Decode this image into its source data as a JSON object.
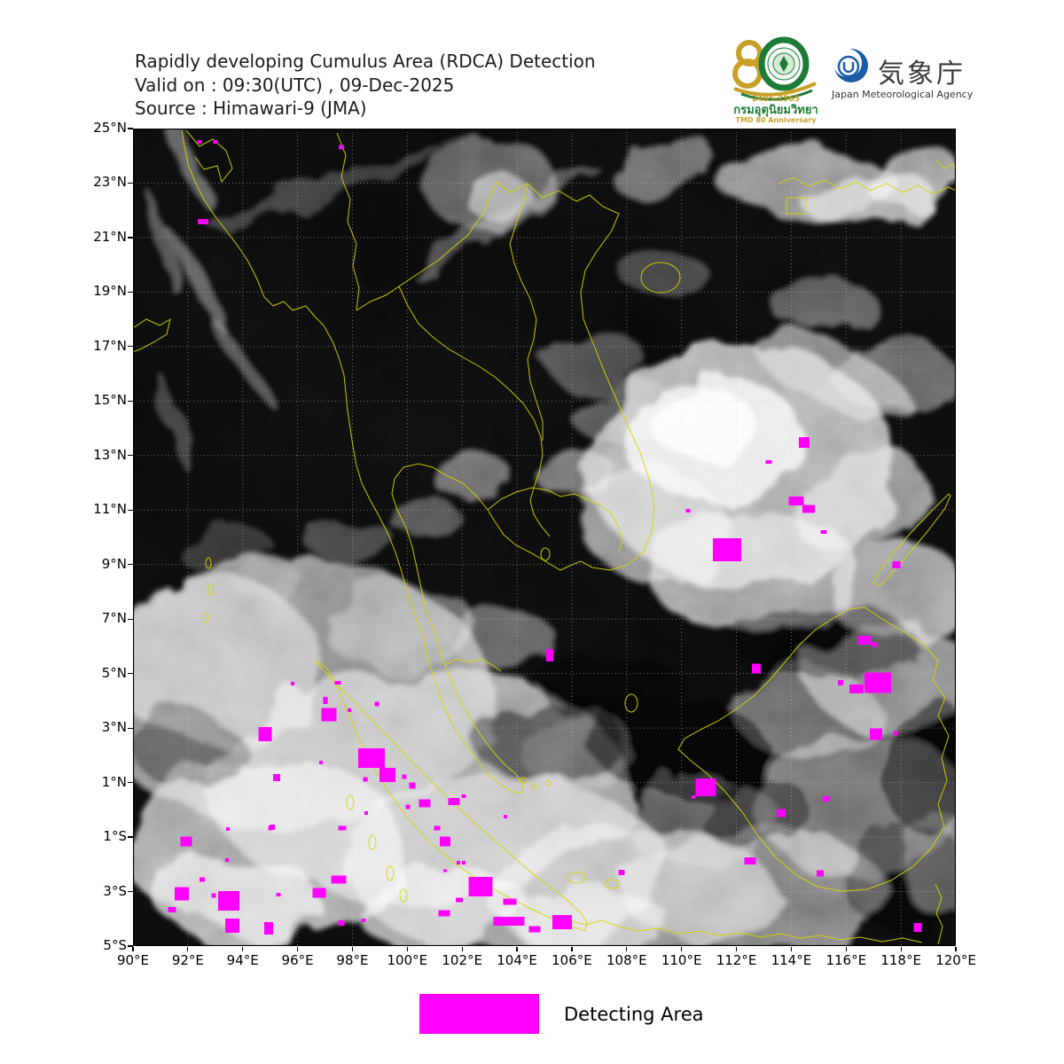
{
  "header": {
    "line1": "Rapidly developing Cumulus Area (RDCA) Detection",
    "line2": "Valid on : 09:30(UTC) , 09-Dec-2025",
    "line3": "Source : Himawari-9 (JMA)"
  },
  "logos": {
    "tmd": {
      "number": "80",
      "years": "2485-2565",
      "thai_name": "กรมอุตุนิยมวิทยา",
      "anniversary": "TMD 80 Anniversary"
    },
    "jma": {
      "name_ja": "気象庁",
      "name_en": "Japan Meteorological Agency"
    }
  },
  "axes": {
    "lon_range": [
      90,
      120
    ],
    "lat_range": [
      -5,
      25
    ],
    "grid_step_deg": 2,
    "lon_tick_values": [
      90,
      92,
      94,
      96,
      98,
      100,
      102,
      104,
      106,
      108,
      110,
      112,
      114,
      116,
      118,
      120
    ],
    "lon_tick_labels": [
      "90°E",
      "92°E",
      "94°E",
      "96°E",
      "98°E",
      "100°E",
      "102°E",
      "104°E",
      "106°E",
      "108°E",
      "110°E",
      "112°E",
      "114°E",
      "116°E",
      "118°E",
      "120°E"
    ],
    "lat_tick_values": [
      25,
      23,
      21,
      19,
      17,
      15,
      13,
      11,
      9,
      7,
      5,
      3,
      1,
      -1,
      -3,
      -5
    ],
    "lat_tick_labels": [
      "25°N",
      "23°N",
      "21°N",
      "19°N",
      "17°N",
      "15°N",
      "13°N",
      "11°N",
      "9°N",
      "7°N",
      "5°N",
      "3°N",
      "1°N",
      "1°S",
      "3°S",
      "5°S"
    ]
  },
  "legend": {
    "label": "Detecting Area",
    "color": "#FF00FF"
  },
  "map": {
    "detections_lon_lat_w_h": [
      [
        92.42,
        24.51,
        5,
        4
      ],
      [
        93.01,
        24.51,
        5,
        4
      ],
      [
        97.6,
        24.32,
        6,
        5
      ],
      [
        92.55,
        21.58,
        12,
        6
      ],
      [
        114.47,
        13.48,
        12,
        12
      ],
      [
        113.18,
        12.76,
        7,
        4
      ],
      [
        114.18,
        11.33,
        17,
        10
      ],
      [
        114.64,
        11.04,
        14,
        9
      ],
      [
        115.19,
        10.19,
        7,
        4
      ],
      [
        111.66,
        9.54,
        32,
        26
      ],
      [
        110.24,
        10.97,
        5,
        4
      ],
      [
        117.84,
        8.99,
        9,
        8
      ],
      [
        116.67,
        6.22,
        15,
        10
      ],
      [
        117.03,
        6.06,
        6,
        5
      ],
      [
        115.8,
        4.66,
        6,
        6
      ],
      [
        117.16,
        4.66,
        30,
        23
      ],
      [
        116.38,
        4.43,
        16,
        10
      ],
      [
        117.09,
        2.77,
        14,
        13
      ],
      [
        117.8,
        2.81,
        5,
        5
      ],
      [
        105.2,
        5.67,
        8,
        14
      ],
      [
        112.73,
        5.18,
        10,
        11
      ],
      [
        95.82,
        4.63,
        4,
        4
      ],
      [
        97.47,
        4.66,
        7,
        4
      ],
      [
        97.02,
        4.01,
        5,
        8
      ],
      [
        97.15,
        3.49,
        17,
        15
      ],
      [
        97.89,
        3.65,
        4,
        4
      ],
      [
        98.89,
        3.88,
        5,
        5
      ],
      [
        94.82,
        2.77,
        15,
        16
      ],
      [
        95.24,
        1.18,
        8,
        8
      ],
      [
        96.85,
        1.73,
        4,
        4
      ],
      [
        98.7,
        1.9,
        30,
        22
      ],
      [
        99.28,
        1.28,
        18,
        16
      ],
      [
        98.47,
        1.11,
        5,
        5
      ],
      [
        99.89,
        1.21,
        5,
        5
      ],
      [
        100.18,
        0.89,
        7,
        7
      ],
      [
        100.02,
        0.11,
        5,
        5
      ],
      [
        100.64,
        0.24,
        13,
        9
      ],
      [
        98.5,
        -0.12,
        4,
        4
      ],
      [
        101.7,
        0.3,
        13,
        8
      ],
      [
        102.06,
        0.5,
        5,
        4
      ],
      [
        103.58,
        -0.25,
        4,
        4
      ],
      [
        110.89,
        0.82,
        23,
        20
      ],
      [
        110.43,
        0.46,
        4,
        4
      ],
      [
        113.63,
        -0.12,
        10,
        9
      ],
      [
        115.28,
        0.4,
        8,
        6
      ],
      [
        112.5,
        -1.88,
        13,
        8
      ],
      [
        115.06,
        -2.33,
        8,
        7
      ],
      [
        91.94,
        -1.16,
        13,
        11
      ],
      [
        93.46,
        -0.71,
        4,
        4
      ],
      [
        95.08,
        -0.64,
        6,
        6
      ],
      [
        95.01,
        -0.68,
        5,
        5
      ],
      [
        97.63,
        -0.68,
        9,
        5
      ],
      [
        101.09,
        -0.68,
        7,
        5
      ],
      [
        101.38,
        -1.16,
        12,
        11
      ],
      [
        93.43,
        -1.85,
        4,
        4
      ],
      [
        101.86,
        -1.94,
        4,
        4
      ],
      [
        102.06,
        -1.94,
        4,
        4
      ],
      [
        101.38,
        -2.23,
        4,
        3
      ],
      [
        92.52,
        -2.56,
        6,
        5
      ],
      [
        97.5,
        -2.56,
        17,
        9
      ],
      [
        102.67,
        -2.82,
        27,
        22
      ],
      [
        107.81,
        -2.3,
        7,
        6
      ],
      [
        91.78,
        -3.08,
        16,
        15
      ],
      [
        92.94,
        -3.15,
        5,
        5
      ],
      [
        93.49,
        -3.34,
        24,
        22
      ],
      [
        95.3,
        -3.11,
        5,
        4
      ],
      [
        96.79,
        -3.05,
        15,
        11
      ],
      [
        91.42,
        -3.66,
        9,
        6
      ],
      [
        101.9,
        -3.31,
        8,
        5
      ],
      [
        103.74,
        -3.37,
        15,
        7
      ],
      [
        101.35,
        -3.8,
        13,
        7
      ],
      [
        93.62,
        -4.25,
        16,
        16
      ],
      [
        94.95,
        -4.35,
        10,
        14
      ],
      [
        97.6,
        -4.16,
        7,
        6
      ],
      [
        98.41,
        -4.06,
        5,
        4
      ],
      [
        103.71,
        -4.09,
        35,
        10
      ],
      [
        104.64,
        -4.38,
        13,
        7
      ],
      [
        105.65,
        -4.12,
        22,
        16
      ],
      [
        118.61,
        -4.32,
        9,
        10
      ]
    ]
  }
}
